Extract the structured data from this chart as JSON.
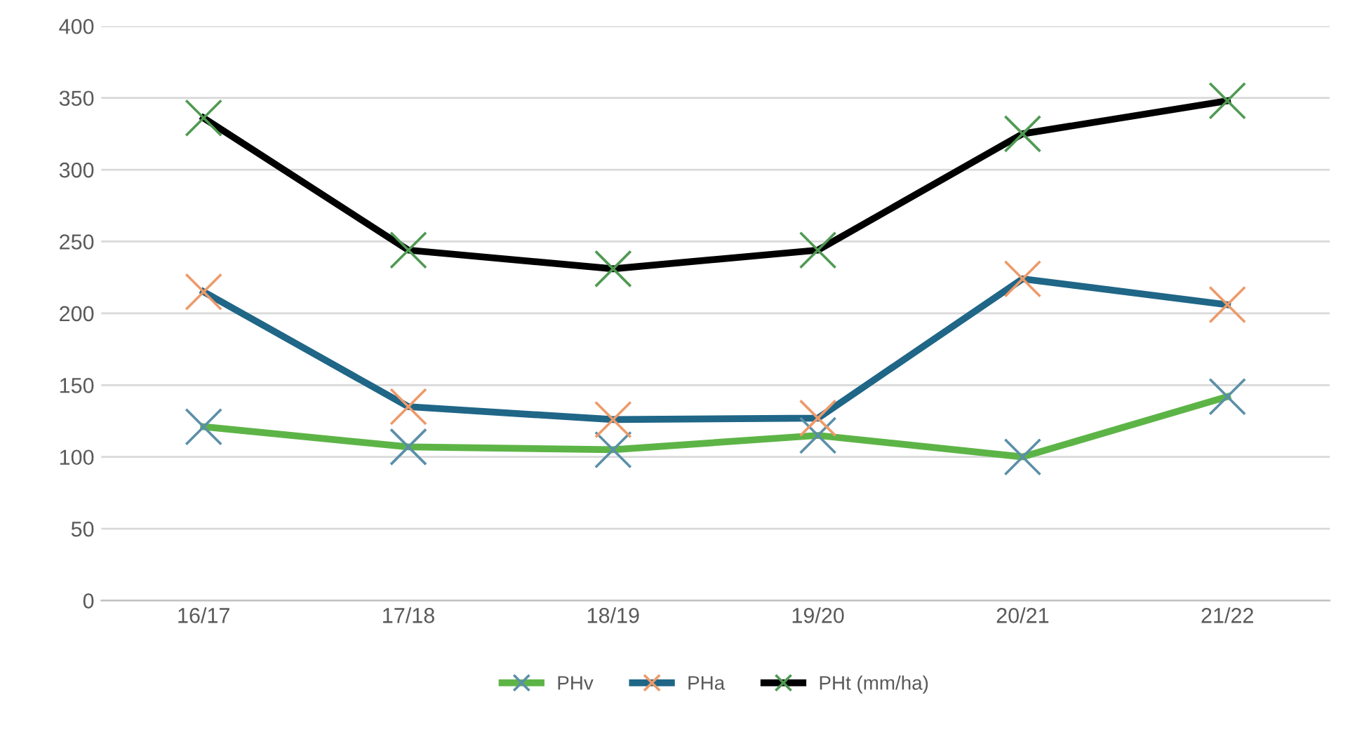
{
  "chart_data": {
    "type": "line",
    "categories": [
      "16/17",
      "17/18",
      "18/19",
      "19/20",
      "20/21",
      "21/22"
    ],
    "series": [
      {
        "name": "PHv",
        "color": "#5db446",
        "colors": [
          "#5b8fa8",
          "#5b8fa8",
          "#5b8fa8",
          "#5b8fa8",
          "#5b8fa8",
          "#5b8fa8"
        ],
        "values": [
          121,
          107,
          105,
          115,
          100,
          142
        ]
      },
      {
        "name": "PHa",
        "color": "#1f6687",
        "colors": [
          "#ed9a6a",
          "#ed9a6a",
          "#ed9a6a",
          "#ed9a6a",
          "#ed9a6a",
          "#ed9a6a"
        ],
        "values": [
          215,
          135,
          126,
          127,
          224,
          206
        ]
      },
      {
        "name": "PHt (mm/ha)",
        "color": "#000000",
        "colors": [
          "#4f9a52",
          "#4f9a52",
          "#4f9a52",
          "#4f9a52",
          "#4f9a52",
          "#4f9a52"
        ],
        "values": [
          336,
          244,
          231,
          244,
          325,
          348
        ]
      }
    ],
    "ylim": [
      0,
      400
    ],
    "yticks": [
      0,
      50,
      100,
      150,
      200,
      250,
      300,
      350,
      400
    ],
    "grid": "y",
    "legend": "bottom",
    "marker": "cross",
    "line_style": "solid"
  }
}
